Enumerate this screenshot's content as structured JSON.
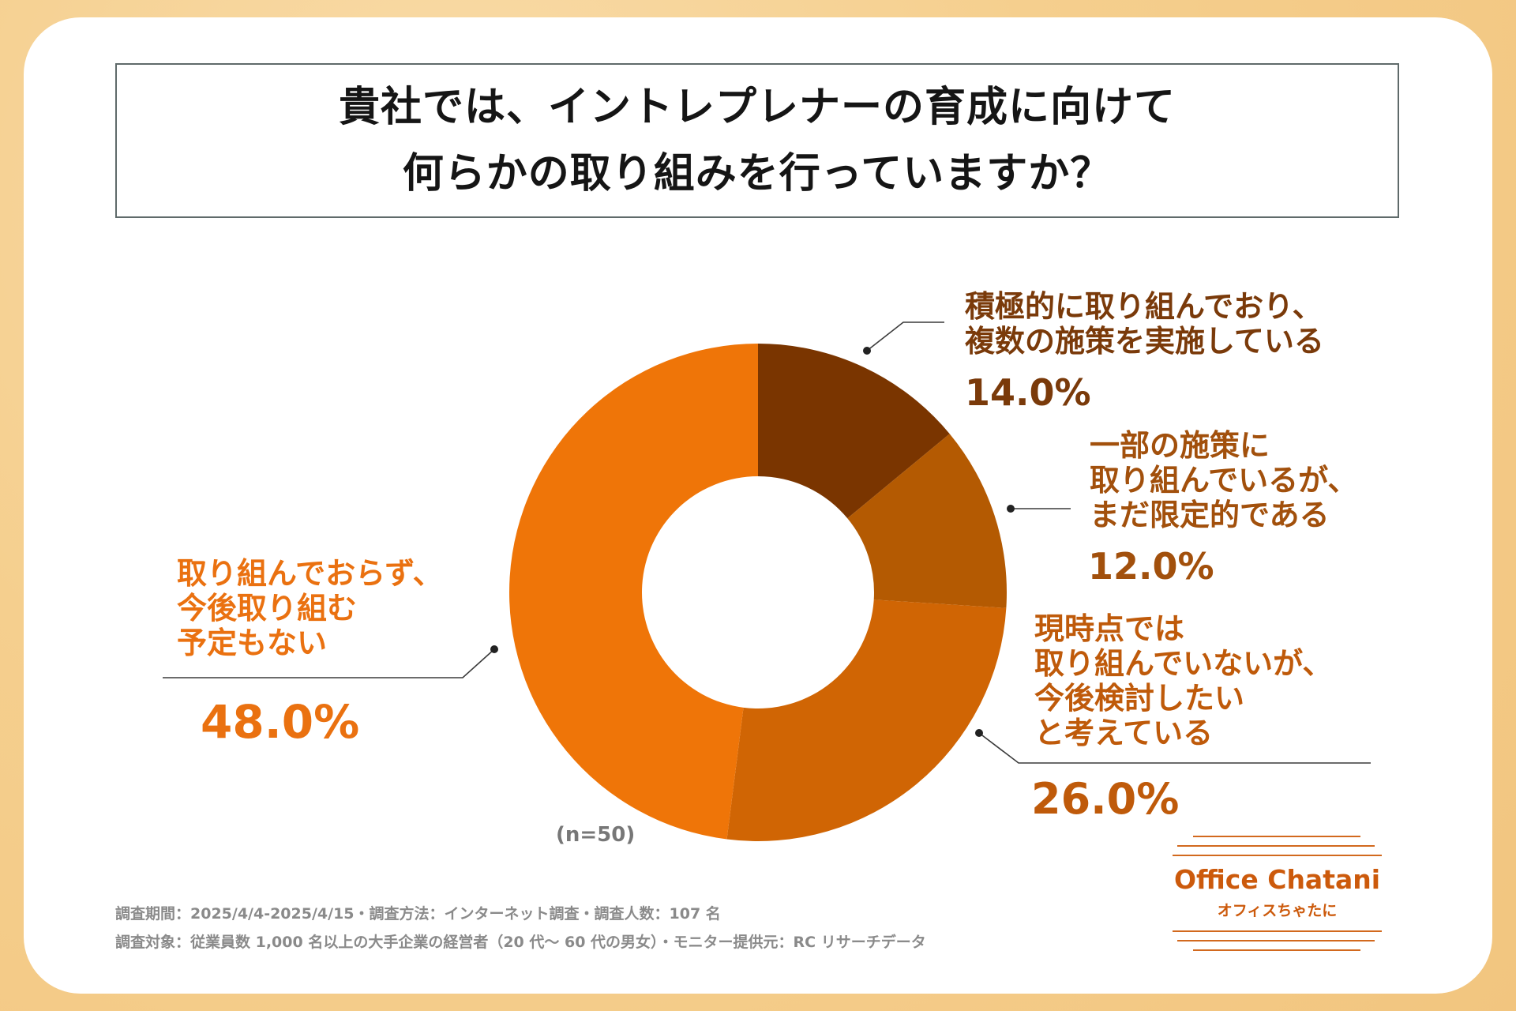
{
  "title": {
    "line1": "貴社では、イントレプレナーの育成に向けて",
    "line2": "何らかの取り組みを行っていますか？"
  },
  "chart_data": {
    "type": "pie",
    "donut": true,
    "title": "貴社では、イントレプレナーの育成に向けて何らかの取り組みを行っていますか？",
    "n_label": "(n=50)",
    "slices": [
      {
        "lines": [
          "積極的に取り組んでおり、",
          "複数の施策を実施している"
        ],
        "value": 14.0,
        "value_label": "14.0%",
        "color": "#7a3500",
        "text_color": "#7a3a0a"
      },
      {
        "lines": [
          "一部の施策に",
          "取り組んでいるが、",
          "まだ限定的である"
        ],
        "value": 12.0,
        "value_label": "12.0%",
        "color": "#b45a02",
        "text_color": "#a2500c"
      },
      {
        "lines": [
          "現時点では",
          "取り組んでいないが、",
          "今後検討したい",
          "と考えている"
        ],
        "value": 26.0,
        "value_label": "26.0%",
        "color": "#d06504",
        "text_color": "#bf5a0a"
      },
      {
        "lines": [
          "取り組んでおらず、",
          "今後取り組む",
          "予定もない"
        ],
        "value": 48.0,
        "value_label": "48.0%",
        "color": "#ef7508",
        "text_color": "#ea7110"
      }
    ]
  },
  "footer": {
    "line1": "調査期間：2025/4/4-2025/4/15・調査方法：インターネット調査・調査人数：107 名",
    "line2": "調査対象：従業員数 1,000 名以上の大手企業の経営者（20 代～ 60 代の男女）・モニター提供元：RC リサーチデータ"
  },
  "logo": {
    "en": "Office Chatani",
    "ja": "オフィスちゃたに"
  }
}
